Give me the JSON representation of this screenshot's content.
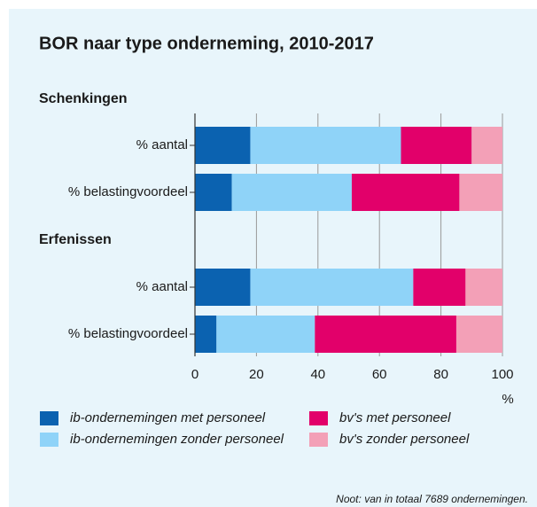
{
  "chart_data": {
    "type": "bar",
    "orientation": "horizontal",
    "stacked": true,
    "title": "BOR naar type onderneming, 2010-2017",
    "groups": [
      {
        "name": "Schenkingen",
        "categories": [
          "% aantal",
          "% belastingvoordeel"
        ]
      },
      {
        "name": "Erfenissen",
        "categories": [
          "% aantal",
          "% belastingvoordeel"
        ]
      }
    ],
    "series": [
      {
        "name": "ib-ondernemingen met personeel",
        "color": "#0b62b0",
        "values": [
          [
            18,
            12
          ],
          [
            18,
            7
          ]
        ]
      },
      {
        "name": "ib-ondernemingen zonder personeel",
        "color": "#8fd3f8",
        "values": [
          [
            49,
            39
          ],
          [
            53,
            32
          ]
        ]
      },
      {
        "name": "bv's met personeel",
        "color": "#e2006a",
        "values": [
          [
            23,
            35
          ],
          [
            17,
            46
          ]
        ]
      },
      {
        "name": "bv's zonder personeel",
        "color": "#f3a0b7",
        "values": [
          [
            10,
            14
          ],
          [
            12,
            15
          ]
        ]
      }
    ],
    "xlim": [
      0,
      100
    ],
    "xticks": [
      0,
      20,
      40,
      60,
      80,
      100
    ],
    "xlabel": "%",
    "grid": true,
    "note": "Noot: van in totaal 7689 ondernemingen."
  }
}
